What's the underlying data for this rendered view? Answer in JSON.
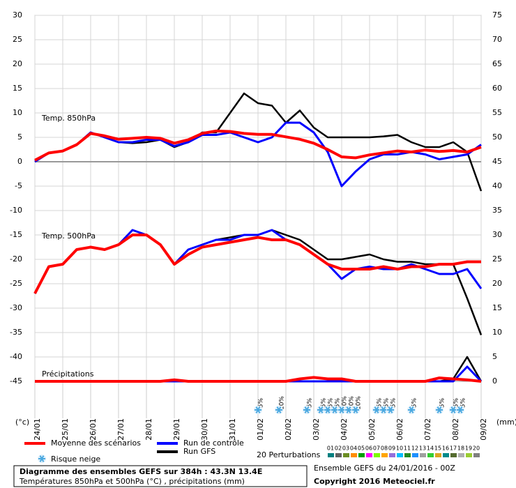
{
  "chart_data": {
    "type": "line",
    "ylim": [
      -45,
      30
    ],
    "yticks": [
      -45,
      -40,
      -35,
      -30,
      -25,
      -20,
      -15,
      -10,
      -5,
      0,
      5,
      10,
      15,
      20,
      25,
      30
    ],
    "y2lim": [
      0,
      75
    ],
    "y2ticks": [
      0,
      5,
      10,
      15,
      20,
      25,
      30,
      35,
      40,
      45,
      50,
      55,
      60,
      65,
      70,
      75
    ],
    "y_unit": "(°c)",
    "y2_unit": "(mm)",
    "xlim": [
      0,
      16
    ],
    "xticks": [
      {
        "value": 0,
        "label": "24/01"
      },
      {
        "value": 1,
        "label": "25/01"
      },
      {
        "value": 2,
        "label": "26/01"
      },
      {
        "value": 3,
        "label": "27/01"
      },
      {
        "value": 4,
        "label": "28/01"
      },
      {
        "value": 5,
        "label": "29/01"
      },
      {
        "value": 6,
        "label": "30/01"
      },
      {
        "value": 7,
        "label": "31/01"
      },
      {
        "value": 8,
        "label": "01/02"
      },
      {
        "value": 9,
        "label": "02/02"
      },
      {
        "value": 10,
        "label": "03/02"
      },
      {
        "value": 11,
        "label": "04/02"
      },
      {
        "value": 12,
        "label": "05/02"
      },
      {
        "value": 13,
        "label": "06/02"
      },
      {
        "value": 14,
        "label": "07/02"
      },
      {
        "value": 15,
        "label": "08/02"
      },
      {
        "value": 16,
        "label": "09/02"
      }
    ],
    "grid": true,
    "zero_line": true,
    "x": [
      0,
      0.5,
      1,
      1.5,
      2,
      2.5,
      3,
      3.5,
      4,
      4.5,
      5,
      5.5,
      6,
      6.5,
      7,
      7.5,
      8,
      8.5,
      9,
      9.5,
      10,
      10.5,
      11,
      11.5,
      12,
      12.5,
      13,
      13.5,
      14,
      14.5,
      15,
      15.5,
      16
    ],
    "panel_labels": {
      "t850": "Temp. 850hPa",
      "t500": "Temp. 500hPa",
      "precip": "Précipitations"
    },
    "axes": {
      "t850": "y",
      "t500": "y",
      "precip": "y2"
    },
    "series": [
      {
        "name": "Moyenne des scénarios",
        "color": "#ff0000",
        "t850": [
          0.3,
          1.8,
          2.2,
          3.5,
          5.8,
          5.3,
          4.6,
          4.8,
          5.0,
          4.8,
          3.8,
          4.5,
          5.8,
          6.3,
          6.2,
          5.8,
          5.6,
          5.6,
          5.1,
          4.6,
          3.8,
          2.5,
          1.0,
          0.8,
          1.4,
          1.8,
          2.2,
          2.0,
          2.4,
          2.1,
          2.3,
          2.0,
          3.0
        ],
        "t500": [
          -27,
          -21.5,
          -21,
          -18,
          -17.5,
          -18,
          -17,
          -15,
          -15,
          -17,
          -21,
          -19,
          -17.5,
          -17,
          -16.5,
          -16,
          -15.5,
          -16,
          -16,
          -17,
          -19,
          -21,
          -22,
          -22,
          -22,
          -21.5,
          -22,
          -21.5,
          -21.5,
          -21,
          -21,
          -20.5,
          -20.5
        ],
        "precip": [
          0,
          0,
          0,
          0,
          0,
          0,
          0,
          0,
          0,
          0,
          0.3,
          0,
          0,
          0,
          0,
          0,
          0,
          0,
          0,
          0.5,
          0.8,
          0.5,
          0.5,
          0,
          0,
          0,
          0,
          0,
          0,
          0.7,
          0.5,
          0.3,
          0
        ]
      },
      {
        "name": "Run de contrôle",
        "color": "#0000ff",
        "t850": [
          0,
          1.8,
          2.2,
          3.5,
          6,
          5,
          4,
          4,
          4.5,
          4.5,
          3.2,
          4,
          5.5,
          5.5,
          6,
          5,
          4,
          5,
          8,
          8,
          6,
          2,
          -5,
          -2,
          0.5,
          1.5,
          1.5,
          2,
          1.5,
          0.5,
          1,
          1.5,
          3.5
        ],
        "t500": [
          -27,
          -21.5,
          -21,
          -18,
          -17.5,
          -18,
          -17,
          -14,
          -15,
          -17,
          -21,
          -18,
          -17,
          -16,
          -16,
          -15,
          -15,
          -14,
          -16,
          -17,
          -19,
          -21,
          -24,
          -22,
          -21.5,
          -22,
          -22,
          -21,
          -22,
          -23,
          -23,
          -22,
          -26
        ],
        "precip": [
          0,
          0,
          0,
          0,
          0,
          0,
          0,
          0,
          0,
          0,
          0,
          0,
          0,
          0,
          0,
          0,
          0,
          0,
          0,
          0,
          0,
          0,
          0,
          0,
          0,
          0,
          0,
          0,
          0,
          0,
          0,
          3,
          0
        ]
      },
      {
        "name": "Run GFS",
        "color": "#000000",
        "t850": [
          0,
          1.8,
          2.2,
          3.5,
          6,
          5,
          4,
          3.8,
          4,
          4.5,
          3,
          4,
          6,
          6,
          10,
          14,
          12,
          11.5,
          8,
          10.5,
          7,
          5,
          5,
          5,
          5,
          5.2,
          5.5,
          4,
          3,
          3,
          4,
          2,
          -6
        ],
        "t500": [
          -27,
          -21.5,
          -21,
          -18,
          -17.5,
          -18,
          -17,
          -14,
          -15,
          -17,
          -21,
          -18,
          -17,
          -16,
          -15.5,
          -15,
          -15,
          -14,
          -15,
          -16,
          -18,
          -20,
          -20,
          -19.5,
          -19,
          -20,
          -20.5,
          -20.5,
          -21,
          -21,
          -21,
          -28,
          -35.5
        ],
        "precip": [
          0,
          0,
          0,
          0,
          0,
          0,
          0,
          0,
          0,
          0,
          0,
          0,
          0,
          0,
          0,
          0,
          0,
          0,
          0,
          0,
          0,
          0,
          0,
          0,
          0,
          0,
          0,
          0,
          0,
          0,
          0.5,
          5,
          0
        ]
      }
    ],
    "snow_risk": {
      "label": "Risque neige",
      "color": "#4aa8e0",
      "points": [
        {
          "x": 8.0,
          "label": "5%"
        },
        {
          "x": 8.75,
          "label": "10%"
        },
        {
          "x": 9.75,
          "label": "5%"
        },
        {
          "x": 10.25,
          "label": "5%"
        },
        {
          "x": 10.5,
          "label": "5%"
        },
        {
          "x": 10.75,
          "label": "5%"
        },
        {
          "x": 11.0,
          "label": "10%"
        },
        {
          "x": 11.25,
          "label": "10%"
        },
        {
          "x": 11.5,
          "label": "10%"
        },
        {
          "x": 12.25,
          "label": "5%"
        },
        {
          "x": 12.5,
          "label": "5%"
        },
        {
          "x": 12.75,
          "label": "5%"
        },
        {
          "x": 13.5,
          "label": "5%"
        },
        {
          "x": 14.5,
          "label": "5%"
        },
        {
          "x": 15.0,
          "label": "5%"
        },
        {
          "x": 15.25,
          "label": "5%"
        }
      ]
    },
    "perturbations": {
      "label": "20 Perturbations",
      "members": [
        {
          "name": "01",
          "color": "#008080"
        },
        {
          "name": "02",
          "color": "#606060"
        },
        {
          "name": "03",
          "color": "#6b8e23"
        },
        {
          "name": "04",
          "color": "#ff8c00"
        },
        {
          "name": "05",
          "color": "#00a000"
        },
        {
          "name": "06",
          "color": "#ff00ff"
        },
        {
          "name": "07",
          "color": "#7cfc00"
        },
        {
          "name": "08",
          "color": "#ffa500"
        },
        {
          "name": "09",
          "color": "#9370db"
        },
        {
          "name": "10",
          "color": "#00bfff"
        },
        {
          "name": "11",
          "color": "#228b22"
        },
        {
          "name": "12",
          "color": "#1e90ff"
        },
        {
          "name": "13",
          "color": "#a0a0a0"
        },
        {
          "name": "14",
          "color": "#32cd32"
        },
        {
          "name": "15",
          "color": "#daa520"
        },
        {
          "name": "16",
          "color": "#008b8b"
        },
        {
          "name": "17",
          "color": "#556b2f"
        },
        {
          "name": "18",
          "color": "#b0b0b0"
        },
        {
          "name": "19",
          "color": "#9acd32"
        },
        {
          "name": "20",
          "color": "#808080"
        }
      ]
    },
    "footer": {
      "title": "Diagramme des ensembles GEFS sur 384h : 43.3N 13.4E",
      "subtitle": "Températures 850hPa et 500hPa (°C) , précipitations (mm)",
      "run": "Ensemble GEFS du 24/01/2016 - 00Z",
      "copyright": "Copyright 2016 Meteociel.fr"
    }
  }
}
